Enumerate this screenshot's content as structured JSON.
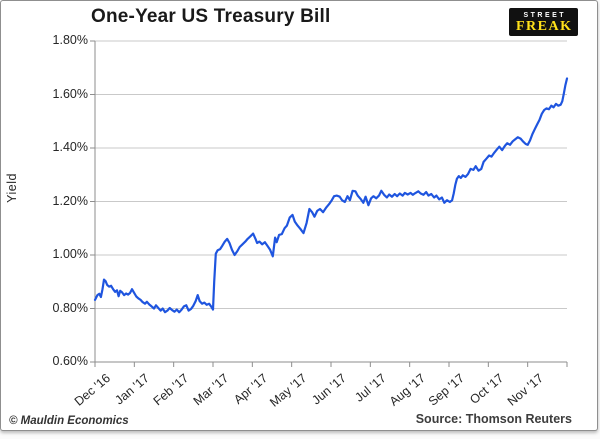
{
  "header": {
    "title": "One-Year US Treasury Bill"
  },
  "logo": {
    "line1": "STREET",
    "line2": "FREAK",
    "bg_color": "#111111",
    "line1_color": "#ffffff",
    "line2_color": "#ffe11a"
  },
  "footer": {
    "copyright": "© Mauldin Economics",
    "source": "Source: Thomson Reuters"
  },
  "chart_data": {
    "type": "line",
    "title": "One-Year US Treasury Bill",
    "xlabel": "",
    "ylabel": "Yield",
    "xlim": [
      0,
      12
    ],
    "ylim": [
      0.6,
      1.8
    ],
    "grid": "horizontal",
    "legend": "none",
    "line_color": "#1f55df",
    "grid_color": "#c9c9c9",
    "axis_color": "#8e8e8e",
    "y_ticks": [
      {
        "value": 1.8,
        "label": "1.80%"
      },
      {
        "value": 1.6,
        "label": "1.60%"
      },
      {
        "value": 1.4,
        "label": "1.40%"
      },
      {
        "value": 1.2,
        "label": "1.20%"
      },
      {
        "value": 1.0,
        "label": "1.00%"
      },
      {
        "value": 0.8,
        "label": "0.80%"
      },
      {
        "value": 0.6,
        "label": "0.60%"
      }
    ],
    "x_ticks": [
      {
        "t": 0,
        "label": "Dec '16"
      },
      {
        "t": 1,
        "label": "Jan '17"
      },
      {
        "t": 2,
        "label": "Feb '17"
      },
      {
        "t": 3,
        "label": "Mar '17"
      },
      {
        "t": 4,
        "label": "Apr '17"
      },
      {
        "t": 5,
        "label": "May '17"
      },
      {
        "t": 6,
        "label": "Jun '17"
      },
      {
        "t": 7,
        "label": "Jul '17"
      },
      {
        "t": 8,
        "label": "Aug '17"
      },
      {
        "t": 9,
        "label": "Sep '17"
      },
      {
        "t": 10,
        "label": "Oct '17"
      },
      {
        "t": 11,
        "label": "Nov '17"
      }
    ],
    "series": [
      {
        "name": "One-Year US Treasury Bill Yield (%)",
        "points": [
          [
            0.0,
            0.832
          ],
          [
            0.06,
            0.85
          ],
          [
            0.11,
            0.855
          ],
          [
            0.15,
            0.843
          ],
          [
            0.19,
            0.872
          ],
          [
            0.23,
            0.908
          ],
          [
            0.27,
            0.902
          ],
          [
            0.31,
            0.888
          ],
          [
            0.36,
            0.882
          ],
          [
            0.41,
            0.885
          ],
          [
            0.46,
            0.872
          ],
          [
            0.51,
            0.862
          ],
          [
            0.56,
            0.868
          ],
          [
            0.6,
            0.846
          ],
          [
            0.64,
            0.866
          ],
          [
            0.69,
            0.86
          ],
          [
            0.74,
            0.85
          ],
          [
            0.79,
            0.856
          ],
          [
            0.84,
            0.852
          ],
          [
            0.89,
            0.858
          ],
          [
            0.94,
            0.872
          ],
          [
            0.99,
            0.86
          ],
          [
            1.05,
            0.845
          ],
          [
            1.1,
            0.838
          ],
          [
            1.16,
            0.832
          ],
          [
            1.21,
            0.824
          ],
          [
            1.27,
            0.818
          ],
          [
            1.32,
            0.825
          ],
          [
            1.38,
            0.815
          ],
          [
            1.44,
            0.808
          ],
          [
            1.5,
            0.8
          ],
          [
            1.55,
            0.812
          ],
          [
            1.61,
            0.802
          ],
          [
            1.67,
            0.792
          ],
          [
            1.72,
            0.8
          ],
          [
            1.78,
            0.786
          ],
          [
            1.84,
            0.792
          ],
          [
            1.9,
            0.802
          ],
          [
            1.96,
            0.794
          ],
          [
            2.02,
            0.788
          ],
          [
            2.08,
            0.796
          ],
          [
            2.14,
            0.786
          ],
          [
            2.2,
            0.795
          ],
          [
            2.26,
            0.808
          ],
          [
            2.32,
            0.812
          ],
          [
            2.38,
            0.792
          ],
          [
            2.44,
            0.798
          ],
          [
            2.5,
            0.81
          ],
          [
            2.56,
            0.828
          ],
          [
            2.61,
            0.85
          ],
          [
            2.66,
            0.828
          ],
          [
            2.72,
            0.818
          ],
          [
            2.78,
            0.822
          ],
          [
            2.84,
            0.814
          ],
          [
            2.9,
            0.818
          ],
          [
            2.96,
            0.806
          ],
          [
            3.0,
            0.796
          ],
          [
            3.03,
            0.9
          ],
          [
            3.07,
            1.005
          ],
          [
            3.12,
            1.018
          ],
          [
            3.18,
            1.022
          ],
          [
            3.24,
            1.035
          ],
          [
            3.3,
            1.05
          ],
          [
            3.36,
            1.06
          ],
          [
            3.42,
            1.045
          ],
          [
            3.48,
            1.02
          ],
          [
            3.55,
            1.0
          ],
          [
            3.62,
            1.015
          ],
          [
            3.68,
            1.03
          ],
          [
            3.75,
            1.04
          ],
          [
            3.82,
            1.05
          ],
          [
            3.88,
            1.06
          ],
          [
            3.95,
            1.07
          ],
          [
            4.02,
            1.08
          ],
          [
            4.08,
            1.06
          ],
          [
            4.12,
            1.045
          ],
          [
            4.18,
            1.05
          ],
          [
            4.25,
            1.04
          ],
          [
            4.32,
            1.048
          ],
          [
            4.38,
            1.035
          ],
          [
            4.45,
            1.02
          ],
          [
            4.52,
            0.995
          ],
          [
            4.58,
            1.065
          ],
          [
            4.62,
            1.048
          ],
          [
            4.68,
            1.075
          ],
          [
            4.75,
            1.078
          ],
          [
            4.82,
            1.1
          ],
          [
            4.88,
            1.11
          ],
          [
            4.95,
            1.14
          ],
          [
            5.02,
            1.15
          ],
          [
            5.08,
            1.125
          ],
          [
            5.15,
            1.11
          ],
          [
            5.22,
            1.098
          ],
          [
            5.3,
            1.082
          ],
          [
            5.38,
            1.12
          ],
          [
            5.45,
            1.172
          ],
          [
            5.52,
            1.16
          ],
          [
            5.58,
            1.143
          ],
          [
            5.65,
            1.165
          ],
          [
            5.72,
            1.172
          ],
          [
            5.8,
            1.16
          ],
          [
            5.88,
            1.178
          ],
          [
            5.95,
            1.19
          ],
          [
            6.02,
            1.205
          ],
          [
            6.08,
            1.22
          ],
          [
            6.15,
            1.222
          ],
          [
            6.22,
            1.218
          ],
          [
            6.28,
            1.205
          ],
          [
            6.35,
            1.198
          ],
          [
            6.42,
            1.22
          ],
          [
            6.48,
            1.205
          ],
          [
            6.55,
            1.24
          ],
          [
            6.62,
            1.238
          ],
          [
            6.68,
            1.222
          ],
          [
            6.75,
            1.21
          ],
          [
            6.82,
            1.195
          ],
          [
            6.88,
            1.218
          ],
          [
            6.95,
            1.186
          ],
          [
            7.02,
            1.212
          ],
          [
            7.08,
            1.22
          ],
          [
            7.15,
            1.212
          ],
          [
            7.22,
            1.222
          ],
          [
            7.28,
            1.24
          ],
          [
            7.35,
            1.225
          ],
          [
            7.42,
            1.215
          ],
          [
            7.48,
            1.226
          ],
          [
            7.55,
            1.218
          ],
          [
            7.62,
            1.228
          ],
          [
            7.68,
            1.22
          ],
          [
            7.75,
            1.23
          ],
          [
            7.82,
            1.222
          ],
          [
            7.88,
            1.232
          ],
          [
            7.95,
            1.226
          ],
          [
            8.02,
            1.232
          ],
          [
            8.08,
            1.225
          ],
          [
            8.15,
            1.232
          ],
          [
            8.22,
            1.238
          ],
          [
            8.28,
            1.23
          ],
          [
            8.35,
            1.225
          ],
          [
            8.42,
            1.235
          ],
          [
            8.48,
            1.222
          ],
          [
            8.55,
            1.228
          ],
          [
            8.62,
            1.215
          ],
          [
            8.68,
            1.222
          ],
          [
            8.75,
            1.208
          ],
          [
            8.82,
            1.215
          ],
          [
            8.88,
            1.195
          ],
          [
            8.95,
            1.205
          ],
          [
            9.02,
            1.198
          ],
          [
            9.08,
            1.205
          ],
          [
            9.12,
            1.23
          ],
          [
            9.16,
            1.262
          ],
          [
            9.2,
            1.285
          ],
          [
            9.25,
            1.295
          ],
          [
            9.3,
            1.288
          ],
          [
            9.35,
            1.298
          ],
          [
            9.42,
            1.292
          ],
          [
            9.48,
            1.302
          ],
          [
            9.55,
            1.322
          ],
          [
            9.62,
            1.318
          ],
          [
            9.68,
            1.332
          ],
          [
            9.75,
            1.315
          ],
          [
            9.82,
            1.322
          ],
          [
            9.88,
            1.348
          ],
          [
            9.95,
            1.36
          ],
          [
            10.02,
            1.372
          ],
          [
            10.08,
            1.368
          ],
          [
            10.15,
            1.382
          ],
          [
            10.22,
            1.395
          ],
          [
            10.28,
            1.405
          ],
          [
            10.35,
            1.392
          ],
          [
            10.42,
            1.408
          ],
          [
            10.48,
            1.418
          ],
          [
            10.55,
            1.412
          ],
          [
            10.62,
            1.425
          ],
          [
            10.68,
            1.432
          ],
          [
            10.75,
            1.44
          ],
          [
            10.82,
            1.435
          ],
          [
            10.88,
            1.425
          ],
          [
            10.95,
            1.415
          ],
          [
            11.0,
            1.412
          ],
          [
            11.06,
            1.428
          ],
          [
            11.12,
            1.452
          ],
          [
            11.18,
            1.47
          ],
          [
            11.24,
            1.488
          ],
          [
            11.3,
            1.505
          ],
          [
            11.36,
            1.528
          ],
          [
            11.42,
            1.542
          ],
          [
            11.48,
            1.548
          ],
          [
            11.54,
            1.545
          ],
          [
            11.6,
            1.558
          ],
          [
            11.66,
            1.552
          ],
          [
            11.72,
            1.565
          ],
          [
            11.78,
            1.558
          ],
          [
            11.84,
            1.562
          ],
          [
            11.88,
            1.575
          ],
          [
            11.92,
            1.605
          ],
          [
            11.96,
            1.635
          ],
          [
            12.0,
            1.66
          ]
        ]
      }
    ]
  }
}
